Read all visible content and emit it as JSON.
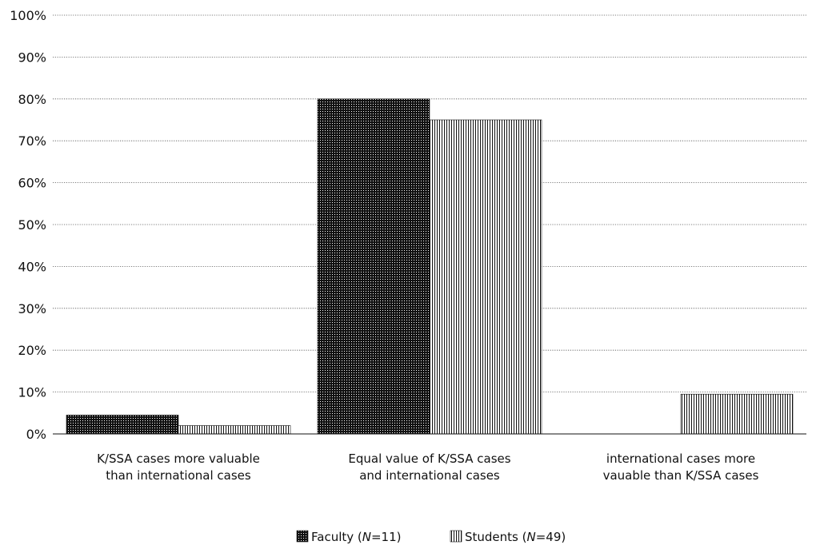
{
  "chart_data": {
    "type": "bar",
    "title": "",
    "xlabel": "",
    "ylabel": "",
    "ylim": [
      0,
      100
    ],
    "y_tick_labels": [
      "0%",
      "10%",
      "20%",
      "30%",
      "40%",
      "50%",
      "60%",
      "70%",
      "80%",
      "90%",
      "100%"
    ],
    "y_tick_values": [
      0,
      10,
      20,
      30,
      40,
      50,
      60,
      70,
      80,
      90,
      100
    ],
    "grid": true,
    "legend_position": "bottom-center",
    "categories": [
      [
        "K/SSA cases more valuable",
        "than international cases"
      ],
      [
        "Equal value of K/SSA cases",
        "and international cases"
      ],
      [
        "international cases more",
        "vauable than K/SSA cases"
      ]
    ],
    "series": [
      {
        "legend_prefix": "Faculty (",
        "legend_n": "N",
        "legend_suffix": "=11)",
        "pattern": "dotted-dark",
        "values": [
          4.5,
          80.0,
          0.0
        ]
      },
      {
        "legend_prefix": "Students (",
        "legend_n": "N",
        "legend_suffix": "=49)",
        "pattern": "vertical-lines",
        "values": [
          2.0,
          75.0,
          9.5
        ]
      }
    ],
    "colors": {
      "ink": "#111111",
      "paper": "#ffffff"
    }
  }
}
